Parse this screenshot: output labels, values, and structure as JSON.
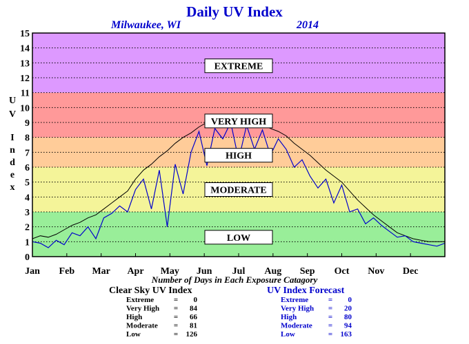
{
  "chart_data": {
    "type": "line",
    "title": "Daily UV Index",
    "location": "Milwaukee, WI",
    "year": "2014",
    "ylabel": "UV Index",
    "ylim": [
      0,
      15
    ],
    "y_ticks": [
      "0",
      "1",
      "2",
      "3",
      "4",
      "5",
      "6",
      "7",
      "8",
      "9",
      "10",
      "11",
      "12",
      "13",
      "14",
      "15"
    ],
    "x_ticks": [
      "Jan",
      "Feb",
      "Mar",
      "Apr",
      "May",
      "Jun",
      "Jul",
      "Aug",
      "Sep",
      "Oct",
      "Nov",
      "Dec"
    ],
    "x_unit": "day of year",
    "xlim": [
      1,
      365
    ],
    "grid": true,
    "bands": [
      {
        "label": "LOW",
        "from": 0,
        "to": 3,
        "color": "#99ee99"
      },
      {
        "label": "MODERATE",
        "from": 3,
        "to": 6,
        "color": "#f4f499"
      },
      {
        "label": "HIGH",
        "from": 6,
        "to": 8,
        "color": "#ffcc99"
      },
      {
        "label": "VERY HIGH",
        "from": 8,
        "to": 11,
        "color": "#ff9999"
      },
      {
        "label": "EXTREME",
        "from": 11,
        "to": 15,
        "color": "#dd99ff"
      }
    ],
    "band_labels": {
      "LOW": {
        "label": "LOW",
        "y": 1.3
      },
      "MODERATE": {
        "label": "MODERATE",
        "y": 4.5
      },
      "HIGH": {
        "label": "HIGH",
        "y": 6.8
      },
      "VERY HIGH": {
        "label": "VERY HIGH",
        "y": 9.1
      },
      "EXTREME": {
        "label": "EXTREME",
        "y": 12.8
      }
    },
    "series": [
      {
        "name": "Clear Sky UV Index",
        "color": "#000000",
        "points": [
          [
            1,
            1.2
          ],
          [
            8,
            1.4
          ],
          [
            15,
            1.3
          ],
          [
            22,
            1.5
          ],
          [
            29,
            1.8
          ],
          [
            36,
            2.1
          ],
          [
            43,
            2.3
          ],
          [
            50,
            2.6
          ],
          [
            57,
            2.8
          ],
          [
            64,
            3.2
          ],
          [
            71,
            3.6
          ],
          [
            78,
            4.0
          ],
          [
            85,
            4.4
          ],
          [
            92,
            5.2
          ],
          [
            99,
            5.8
          ],
          [
            106,
            6.2
          ],
          [
            113,
            6.7
          ],
          [
            120,
            7.1
          ],
          [
            127,
            7.6
          ],
          [
            134,
            8.0
          ],
          [
            141,
            8.3
          ],
          [
            148,
            8.7
          ],
          [
            155,
            9.0
          ],
          [
            162,
            9.1
          ],
          [
            169,
            9.2
          ],
          [
            176,
            9.3
          ],
          [
            183,
            9.2
          ],
          [
            190,
            9.1
          ],
          [
            197,
            9.0
          ],
          [
            204,
            8.9
          ],
          [
            211,
            8.6
          ],
          [
            218,
            8.4
          ],
          [
            225,
            8.1
          ],
          [
            232,
            7.6
          ],
          [
            239,
            7.2
          ],
          [
            246,
            6.8
          ],
          [
            253,
            6.3
          ],
          [
            260,
            5.8
          ],
          [
            267,
            5.4
          ],
          [
            274,
            5.0
          ],
          [
            281,
            4.4
          ],
          [
            288,
            3.8
          ],
          [
            295,
            3.3
          ],
          [
            302,
            2.8
          ],
          [
            309,
            2.4
          ],
          [
            316,
            2.0
          ],
          [
            323,
            1.6
          ],
          [
            330,
            1.4
          ],
          [
            337,
            1.2
          ],
          [
            344,
            1.1
          ],
          [
            351,
            1.0
          ],
          [
            358,
            1.0
          ],
          [
            365,
            1.0
          ]
        ]
      },
      {
        "name": "UV Index Forecast",
        "color": "#0000cc",
        "points": [
          [
            1,
            1.0
          ],
          [
            8,
            0.9
          ],
          [
            15,
            0.6
          ],
          [
            22,
            1.1
          ],
          [
            29,
            0.8
          ],
          [
            36,
            1.6
          ],
          [
            43,
            1.4
          ],
          [
            50,
            2.0
          ],
          [
            57,
            1.2
          ],
          [
            64,
            2.6
          ],
          [
            71,
            2.9
          ],
          [
            78,
            3.4
          ],
          [
            85,
            3.0
          ],
          [
            92,
            4.5
          ],
          [
            99,
            5.2
          ],
          [
            106,
            3.2
          ],
          [
            113,
            5.8
          ],
          [
            120,
            2.0
          ],
          [
            127,
            6.2
          ],
          [
            134,
            4.2
          ],
          [
            141,
            7.0
          ],
          [
            148,
            8.4
          ],
          [
            155,
            6.1
          ],
          [
            162,
            8.6
          ],
          [
            169,
            7.9
          ],
          [
            176,
            9.0
          ],
          [
            183,
            6.5
          ],
          [
            190,
            8.8
          ],
          [
            197,
            7.2
          ],
          [
            204,
            8.5
          ],
          [
            211,
            6.8
          ],
          [
            218,
            7.9
          ],
          [
            225,
            7.2
          ],
          [
            232,
            6.0
          ],
          [
            239,
            6.5
          ],
          [
            246,
            5.4
          ],
          [
            253,
            4.6
          ],
          [
            260,
            5.2
          ],
          [
            267,
            3.6
          ],
          [
            274,
            4.8
          ],
          [
            281,
            3.0
          ],
          [
            288,
            3.2
          ],
          [
            295,
            2.2
          ],
          [
            302,
            2.6
          ],
          [
            309,
            2.1
          ],
          [
            316,
            1.7
          ],
          [
            323,
            1.3
          ],
          [
            330,
            1.4
          ],
          [
            337,
            1.0
          ],
          [
            344,
            0.9
          ],
          [
            351,
            0.8
          ],
          [
            358,
            0.7
          ],
          [
            365,
            0.9
          ]
        ]
      }
    ]
  },
  "note": "Number of Days in Each Exposure Catagory",
  "clear_sky": {
    "title": "Clear Sky UV Index",
    "rows": [
      {
        "label": "Extreme",
        "eq": "=",
        "value": "0"
      },
      {
        "label": "Very High",
        "eq": "=",
        "value": "84"
      },
      {
        "label": "High",
        "eq": "=",
        "value": "66"
      },
      {
        "label": "Moderate",
        "eq": "=",
        "value": "81"
      },
      {
        "label": "Low",
        "eq": "=",
        "value": "126"
      }
    ]
  },
  "forecast": {
    "title": "UV Index Forecast",
    "rows": [
      {
        "label": "Extreme",
        "eq": "=",
        "value": "0"
      },
      {
        "label": "Very High",
        "eq": "=",
        "value": "20"
      },
      {
        "label": "High",
        "eq": "=",
        "value": "80"
      },
      {
        "label": "Moderate",
        "eq": "=",
        "value": "94"
      },
      {
        "label": "Low",
        "eq": "=",
        "value": "163"
      }
    ]
  }
}
